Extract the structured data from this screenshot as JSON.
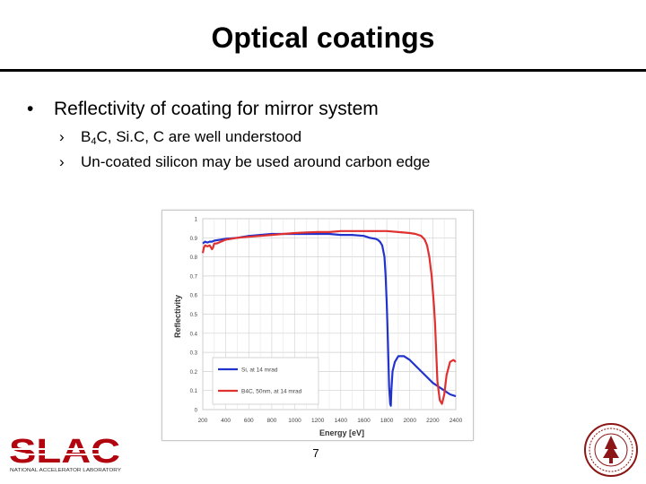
{
  "slide": {
    "title": "Optical coatings",
    "bullet": "Reflectivity of coating for mirror system",
    "bullet_marker": "•",
    "sub_marker": "›",
    "sub1_pre": "B",
    "sub1_sub": "4",
    "sub1_post": "C, Si.C, C are well understood",
    "sub2": "Un-coated silicon may be used around carbon edge",
    "page_number": "7"
  },
  "logo": {
    "text": "SLAC",
    "tagline": "NATIONAL ACCELERATOR LABORATORY",
    "color": "#b1040e"
  },
  "chart_data": {
    "type": "line",
    "xlabel": "Energy [eV]",
    "ylabel": "Reflectivity",
    "xlim": [
      200,
      2400
    ],
    "ylim": [
      0,
      1
    ],
    "x_ticks": [
      "200",
      "400",
      "600",
      "800",
      "1000",
      "1200",
      "1400",
      "1600",
      "1800",
      "2000",
      "2200",
      "2400"
    ],
    "y_ticks": [
      "0",
      "0.1",
      "0.2",
      "0.3",
      "0.4",
      "0.5",
      "0.6",
      "0.7",
      "0.8",
      "0.9",
      "1"
    ],
    "grid": true,
    "legend_position": "bottom-left",
    "series": [
      {
        "name": "Si, at 14 mrad",
        "color": "#2233cc",
        "x": [
          200,
          220,
          240,
          260,
          280,
          300,
          400,
          500,
          600,
          700,
          800,
          900,
          1000,
          1100,
          1200,
          1300,
          1400,
          1500,
          1600,
          1650,
          1700,
          1720,
          1740,
          1760,
          1780,
          1790,
          1800,
          1810,
          1820,
          1830,
          1835,
          1840,
          1850,
          1870,
          1900,
          1950,
          2000,
          2050,
          2100,
          2150,
          2200,
          2250,
          2300,
          2350,
          2400
        ],
        "y": [
          0.87,
          0.88,
          0.875,
          0.88,
          0.88,
          0.885,
          0.895,
          0.9,
          0.91,
          0.915,
          0.92,
          0.92,
          0.92,
          0.92,
          0.92,
          0.92,
          0.915,
          0.915,
          0.91,
          0.9,
          0.895,
          0.89,
          0.88,
          0.86,
          0.8,
          0.7,
          0.55,
          0.35,
          0.12,
          0.03,
          0.02,
          0.1,
          0.2,
          0.25,
          0.28,
          0.28,
          0.26,
          0.23,
          0.2,
          0.17,
          0.14,
          0.12,
          0.1,
          0.08,
          0.07
        ]
      },
      {
        "name": "B4C, 50nm, at 14 mrad",
        "color": "#e03030",
        "x": [
          200,
          210,
          220,
          240,
          260,
          280,
          290,
          300,
          320,
          400,
          500,
          600,
          700,
          800,
          900,
          1000,
          1100,
          1200,
          1300,
          1400,
          1500,
          1600,
          1700,
          1800,
          1900,
          2000,
          2050,
          2100,
          2130,
          2150,
          2170,
          2190,
          2210,
          2220,
          2230,
          2240,
          2260,
          2280,
          2300,
          2320,
          2350,
          2380,
          2400
        ],
        "y": [
          0.82,
          0.85,
          0.86,
          0.855,
          0.86,
          0.84,
          0.85,
          0.87,
          0.87,
          0.89,
          0.9,
          0.905,
          0.91,
          0.915,
          0.92,
          0.925,
          0.928,
          0.93,
          0.93,
          0.935,
          0.935,
          0.935,
          0.935,
          0.935,
          0.93,
          0.925,
          0.92,
          0.91,
          0.89,
          0.86,
          0.8,
          0.7,
          0.55,
          0.45,
          0.3,
          0.15,
          0.05,
          0.03,
          0.08,
          0.18,
          0.25,
          0.26,
          0.25
        ]
      }
    ]
  }
}
